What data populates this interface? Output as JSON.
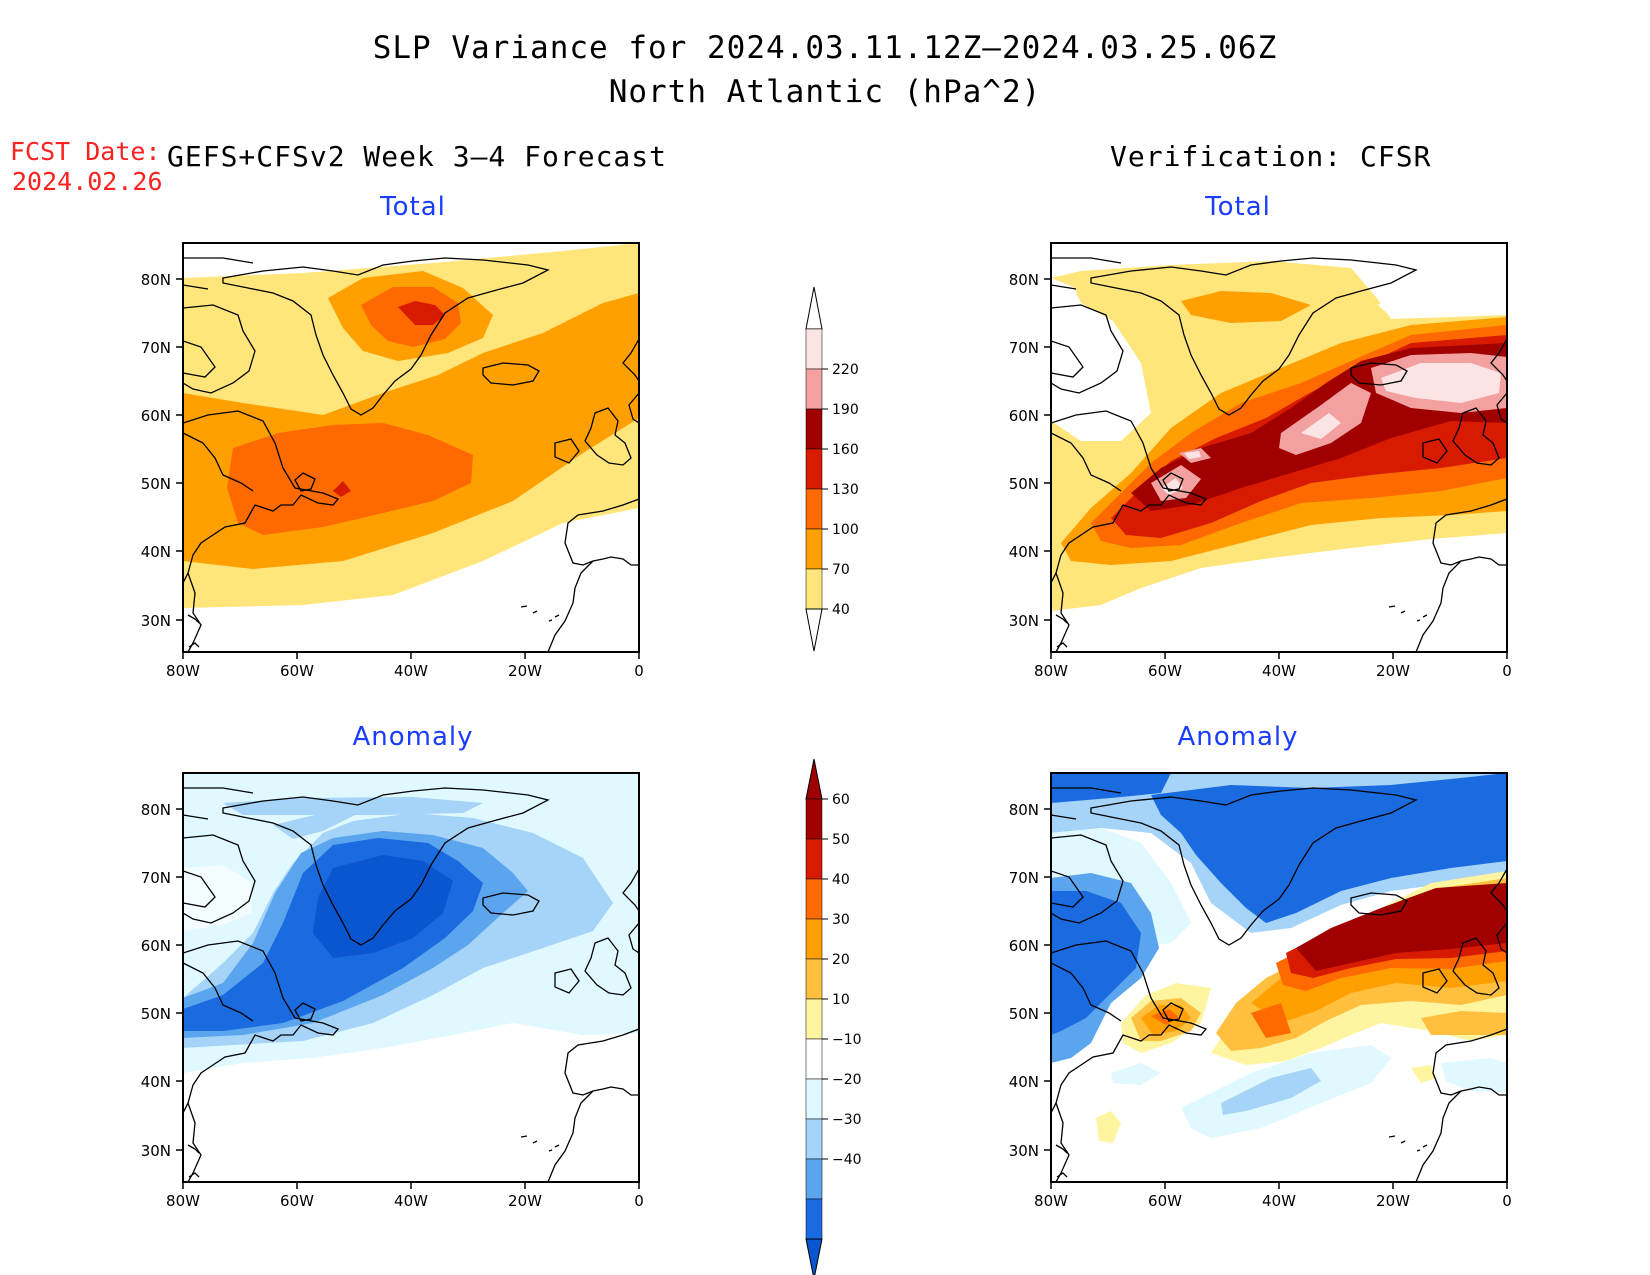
{
  "title_line1": "SLP Variance for 2024.03.11.12Z–2024.03.25.06Z",
  "title_line2": "North Atlantic (hPa^2)",
  "fcst_label": "FCST Date:",
  "fcst_date": "2024.02.26",
  "left_header": "GEFS+CFSv2 Week 3–4 Forecast",
  "right_header": "Verification: CFSR",
  "panels": [
    {
      "title": "Total"
    },
    {
      "title": "Total"
    },
    {
      "title": "Anomaly"
    },
    {
      "title": "Anomaly"
    }
  ],
  "axes": {
    "lat_labels": [
      "80N",
      "70N",
      "60N",
      "50N",
      "40N",
      "30N"
    ],
    "lon_labels": [
      "80W",
      "60W",
      "40W",
      "20W",
      "0"
    ]
  },
  "colorbar_total": {
    "labels": [
      "220",
      "190",
      "160",
      "130",
      "100",
      "70",
      "40"
    ],
    "colors": [
      "#fde4e4",
      "#f2a0a0",
      "#a00000",
      "#d81b00",
      "#ff6a00",
      "#ffa000",
      "#ffe57a"
    ]
  },
  "colorbar_anom": {
    "labels": [
      "60",
      "50",
      "40",
      "30",
      "20",
      "10",
      "−10",
      "−20",
      "−30",
      "−40"
    ],
    "colors": [
      "#a00000",
      "#d81b00",
      "#ff6a00",
      "#ffa000",
      "#ffc040",
      "#fff5a0",
      "#ffffff",
      "#e0f8ff",
      "#a6d4f8",
      "#5aa5ee",
      "#1a6ae0",
      "#0a55d0"
    ]
  }
}
